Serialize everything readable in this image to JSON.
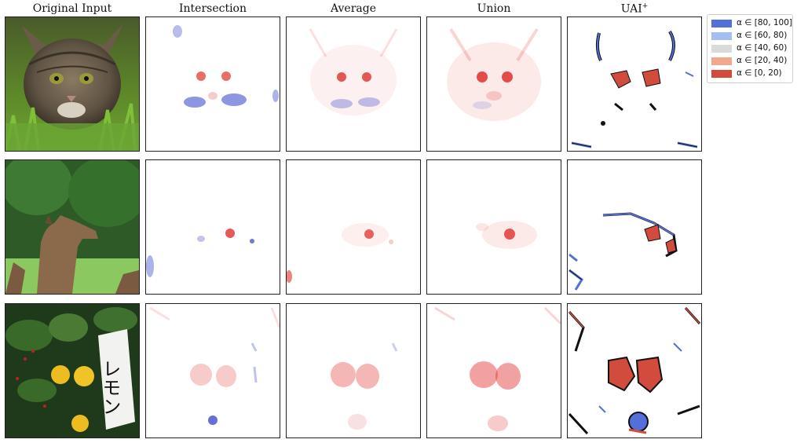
{
  "columns": [
    {
      "key": "original",
      "title": "Original Input",
      "sup": ""
    },
    {
      "key": "intersection",
      "title": "Intersection",
      "sup": ""
    },
    {
      "key": "average",
      "title": "Average",
      "sup": ""
    },
    {
      "key": "union",
      "title": "Union",
      "sup": ""
    },
    {
      "key": "uai",
      "title": "UAI",
      "sup": "+"
    }
  ],
  "rows": [
    {
      "subject": "cat"
    },
    {
      "subject": "llama"
    },
    {
      "subject": "lemon"
    }
  ],
  "sign_text": "レモン",
  "legend": [
    {
      "label": "α ∈ [80, 100]",
      "color": "#5470d8"
    },
    {
      "label": "α ∈ [60, 80)",
      "color": "#a4bef2"
    },
    {
      "label": "α ∈ [40, 60)",
      "color": "#dadada"
    },
    {
      "label": "α ∈ [20, 40)",
      "color": "#f0a88e"
    },
    {
      "label": "α ∈ [0, 20)",
      "color": "#d24c3e"
    }
  ],
  "colors": {
    "red": "#e0302c",
    "blue": "#3040c8",
    "uai_red": "#d24c3e",
    "uai_blue": "#5470d8",
    "uai_light_blue": "#a4bef2"
  }
}
